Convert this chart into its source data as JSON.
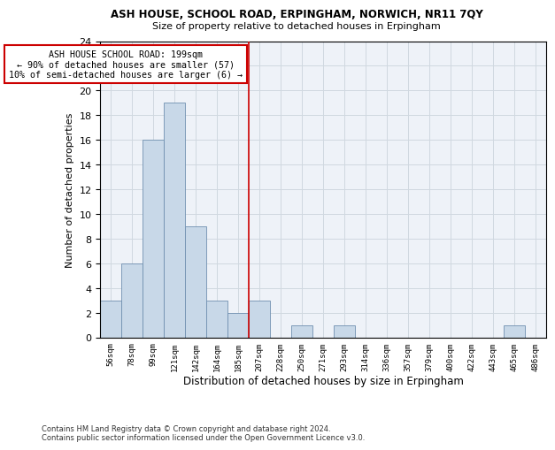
{
  "title_line1": "ASH HOUSE, SCHOOL ROAD, ERPINGHAM, NORWICH, NR11 7QY",
  "title_line2": "Size of property relative to detached houses in Erpingham",
  "xlabel": "Distribution of detached houses by size in Erpingham",
  "ylabel": "Number of detached properties",
  "bar_labels": [
    "56sqm",
    "78sqm",
    "99sqm",
    "121sqm",
    "142sqm",
    "164sqm",
    "185sqm",
    "207sqm",
    "228sqm",
    "250sqm",
    "271sqm",
    "293sqm",
    "314sqm",
    "336sqm",
    "357sqm",
    "379sqm",
    "400sqm",
    "422sqm",
    "443sqm",
    "465sqm",
    "486sqm"
  ],
  "bar_values": [
    3,
    6,
    16,
    19,
    9,
    3,
    2,
    3,
    0,
    1,
    0,
    1,
    0,
    0,
    0,
    0,
    0,
    0,
    0,
    1,
    0
  ],
  "bar_color": "#c8d8e8",
  "bar_edge_color": "#7090b0",
  "vline_x_idx": 6.5,
  "vline_color": "#cc0000",
  "annotation_text": "ASH HOUSE SCHOOL ROAD: 199sqm\n← 90% of detached houses are smaller (57)\n10% of semi-detached houses are larger (6) →",
  "annotation_box_color": "#ffffff",
  "annotation_box_edge": "#cc0000",
  "ylim": [
    0,
    24
  ],
  "yticks": [
    0,
    2,
    4,
    6,
    8,
    10,
    12,
    14,
    16,
    18,
    20,
    22,
    24
  ],
  "grid_color": "#d0d8e0",
  "background_color": "#eef2f8",
  "footnote": "Contains HM Land Registry data © Crown copyright and database right 2024.\nContains public sector information licensed under the Open Government Licence v3.0."
}
